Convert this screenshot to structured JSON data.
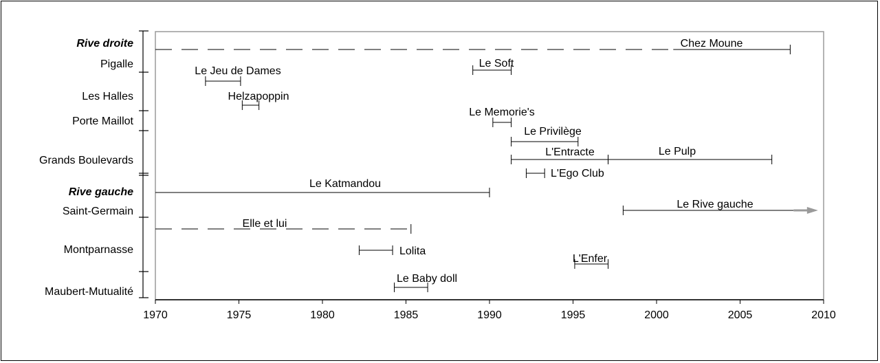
{
  "chart_data": {
    "type": "timeline",
    "x_ticks": [
      1970,
      1975,
      1980,
      1985,
      1990,
      1995,
      2000,
      2005,
      2010
    ],
    "xlim": [
      1970,
      2010
    ],
    "y_groups": [
      {
        "label": "Rive droite",
        "style": "bold-italic"
      },
      {
        "label": "Rive gauche",
        "style": "bold-italic"
      }
    ],
    "y_categories": [
      "Pigalle",
      "Les Halles",
      "Porte Maillot",
      "Grands Boulevards",
      "Saint-Germain",
      "Montparnasse",
      "Maubert-Mutualité"
    ],
    "bars": [
      {
        "name": "Chez Moune",
        "start": 1970,
        "end": 2008,
        "dashed_until": 2001,
        "category": "Pigalle"
      },
      {
        "name": "Le Soft",
        "start": 1989,
        "end": 1991.3,
        "category": "Pigalle"
      },
      {
        "name": "Le Jeu de Dames",
        "start": 1973,
        "end": 1975.1,
        "category": "Les Halles"
      },
      {
        "name": "Helzapoppin",
        "start": 1975.2,
        "end": 1976.2,
        "category": "Les Halles"
      },
      {
        "name": "Le Memorie's",
        "start": 1990.2,
        "end": 1991.3,
        "category": "Porte Maillot"
      },
      {
        "name": "Le Privilège",
        "start": 1991.3,
        "end": 1995.3,
        "category": "Grands Boulevards"
      },
      {
        "name": "L'Entracte",
        "start": 1991.3,
        "end": 1997.1,
        "category": "Grands Boulevards"
      },
      {
        "name": "Le Pulp",
        "start": 1997.1,
        "end": 2006.9,
        "category": "Grands Boulevards"
      },
      {
        "name": "L'Ego Club",
        "start": 1992.2,
        "end": 1993.3,
        "category": "Grands Boulevards"
      },
      {
        "name": "Le Katmandou",
        "start": 1970,
        "end": 1990,
        "category": "Saint-Germain"
      },
      {
        "name": "Le Rive gauche",
        "start": 1998,
        "end": 2009.5,
        "continuing": true,
        "category": "Saint-Germain"
      },
      {
        "name": "Elle et lui",
        "start": 1970,
        "end": 1985.3,
        "dashed": true,
        "category": "Montparnasse"
      },
      {
        "name": "Lolita",
        "start": 1982.2,
        "end": 1984.2,
        "category": "Montparnasse"
      },
      {
        "name": "L'Enfer",
        "start": 1995.1,
        "end": 1997.1,
        "category": "Montparnasse"
      },
      {
        "name": "Le Baby doll",
        "start": 1984.3,
        "end": 1986.3,
        "category": "Maubert-Mutualité"
      }
    ],
    "colors": {
      "axis_frame": "#9a9a9a",
      "line": "#000000",
      "arrow": "#9a9a9a"
    }
  }
}
